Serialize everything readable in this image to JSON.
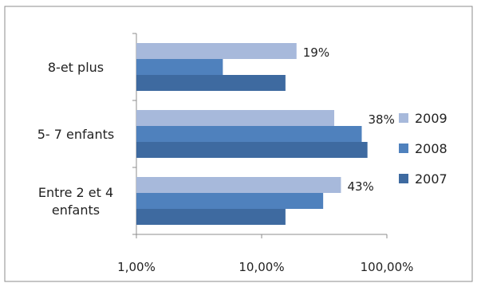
{
  "chart_data": {
    "type": "bar",
    "orientation": "horizontal",
    "x_scale": "log",
    "xlim": [
      0.01,
      1.0
    ],
    "x_ticks": [
      0.01,
      0.1,
      1.0
    ],
    "x_tick_labels": [
      "1,00%",
      "10,00%",
      "100,00%"
    ],
    "categories": [
      "Entre 2 et 4 enfants",
      "5- 7 enfants",
      "8-et plus"
    ],
    "category_lines": [
      [
        "Entre 2 et 4",
        "enfants"
      ],
      [
        "5- 7 enfants"
      ],
      [
        "8-et plus"
      ]
    ],
    "series": [
      {
        "name": "2007",
        "color": "#3E6AA0",
        "values": [
          0.155,
          0.7,
          0.155
        ]
      },
      {
        "name": "2008",
        "color": "#4F81BD",
        "values": [
          0.31,
          0.63,
          0.049
        ]
      },
      {
        "name": "2009",
        "color": "#A7B9DB",
        "values": [
          0.43,
          0.38,
          0.19
        ]
      }
    ],
    "data_labels": [
      "43%",
      "38%",
      "19%"
    ],
    "legend": {
      "placement": "right",
      "order": [
        "2009",
        "2008",
        "2007"
      ]
    },
    "grid": false
  }
}
